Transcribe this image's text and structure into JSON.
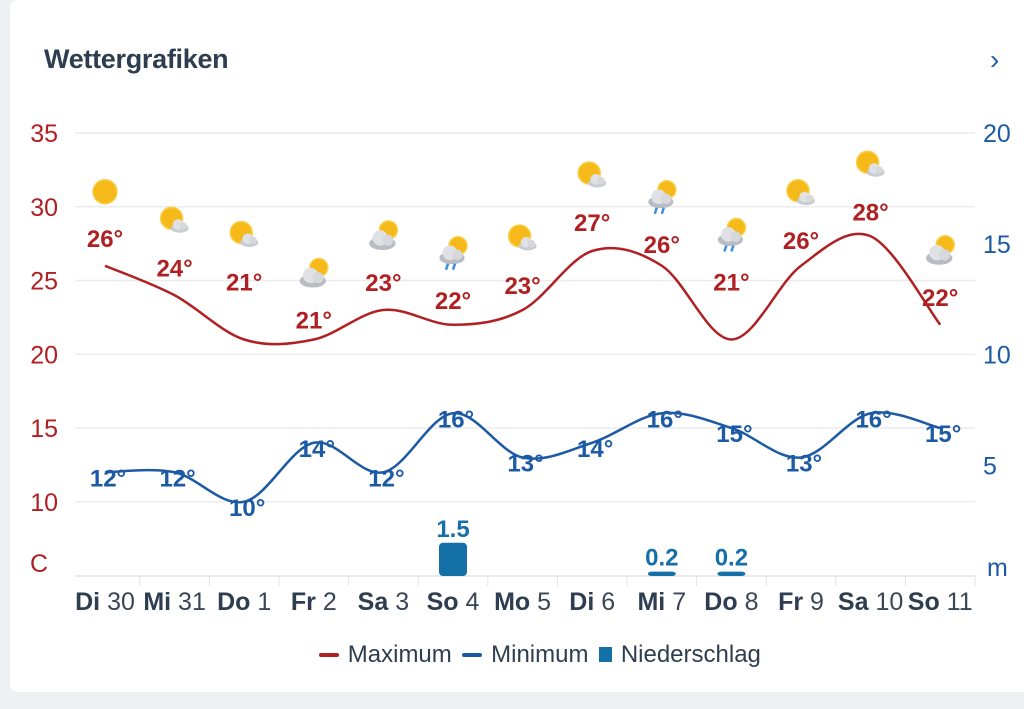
{
  "header": {
    "title": "Wettergrafiken",
    "next_icon": "chevron-right-icon"
  },
  "colors": {
    "max": "#b02023",
    "min": "#1d5aa5",
    "precip": "#1670a8",
    "title": "#2e3d4f"
  },
  "chart_data": {
    "type": "line",
    "categories": [
      {
        "day": "Di",
        "date": "30"
      },
      {
        "day": "Mi",
        "date": "31"
      },
      {
        "day": "Do",
        "date": "1"
      },
      {
        "day": "Fr",
        "date": "2"
      },
      {
        "day": "Sa",
        "date": "3"
      },
      {
        "day": "So",
        "date": "4"
      },
      {
        "day": "Mo",
        "date": "5"
      },
      {
        "day": "Di",
        "date": "6"
      },
      {
        "day": "Mi",
        "date": "7"
      },
      {
        "day": "Do",
        "date": "8"
      },
      {
        "day": "Fr",
        "date": "9"
      },
      {
        "day": "Sa",
        "date": "10"
      },
      {
        "day": "So",
        "date": "11"
      }
    ],
    "series": [
      {
        "name": "Maximum",
        "type": "line",
        "axis": "left",
        "color": "#b02023",
        "values": [
          26,
          24,
          21,
          21,
          23,
          22,
          23,
          27,
          26,
          21,
          26,
          28,
          22
        ],
        "labels": [
          "26°",
          "24°",
          "21°",
          "21°",
          "23°",
          "22°",
          "23°",
          "27°",
          "26°",
          "21°",
          "26°",
          "28°",
          "22°"
        ]
      },
      {
        "name": "Minimum",
        "type": "line",
        "axis": "left",
        "color": "#1d5aa5",
        "values": [
          12,
          12,
          10,
          14,
          12,
          16,
          13,
          14,
          16,
          15,
          13,
          16,
          15
        ],
        "labels": [
          "12°",
          "12°",
          "10°",
          "14°",
          "12°",
          "16°",
          "13°",
          "14°",
          "16°",
          "15°",
          "13°",
          "16°",
          "15°"
        ]
      },
      {
        "name": "Niederschlag",
        "type": "bar",
        "axis": "right",
        "color": "#1670a8",
        "values": [
          0,
          0,
          0,
          0,
          0,
          1.5,
          0,
          0,
          0.2,
          0.2,
          0,
          0,
          0
        ],
        "labels": [
          "",
          "",
          "",
          "",
          "",
          "1.5",
          "",
          "",
          "0.2",
          "0.2",
          "",
          "",
          ""
        ]
      }
    ],
    "weather_icons": [
      "sun",
      "sun-cloud",
      "sun-cloud",
      "cloud-sun",
      "cloud-sun",
      "rain-sun",
      "sun-cloud",
      "sun-cloud",
      "rain-sun",
      "rain-sun",
      "sun-cloud",
      "sun-cloud",
      "cloud-sun"
    ],
    "left_axis": {
      "ticks": [
        "35",
        "30",
        "25",
        "20",
        "15",
        "10"
      ],
      "unit": "C",
      "range": [
        4,
        35
      ]
    },
    "right_axis": {
      "ticks": [
        "20",
        "15",
        "10",
        "5"
      ],
      "unit": "m",
      "range": [
        0,
        20
      ]
    },
    "grid": true,
    "legend_position": "bottom"
  }
}
